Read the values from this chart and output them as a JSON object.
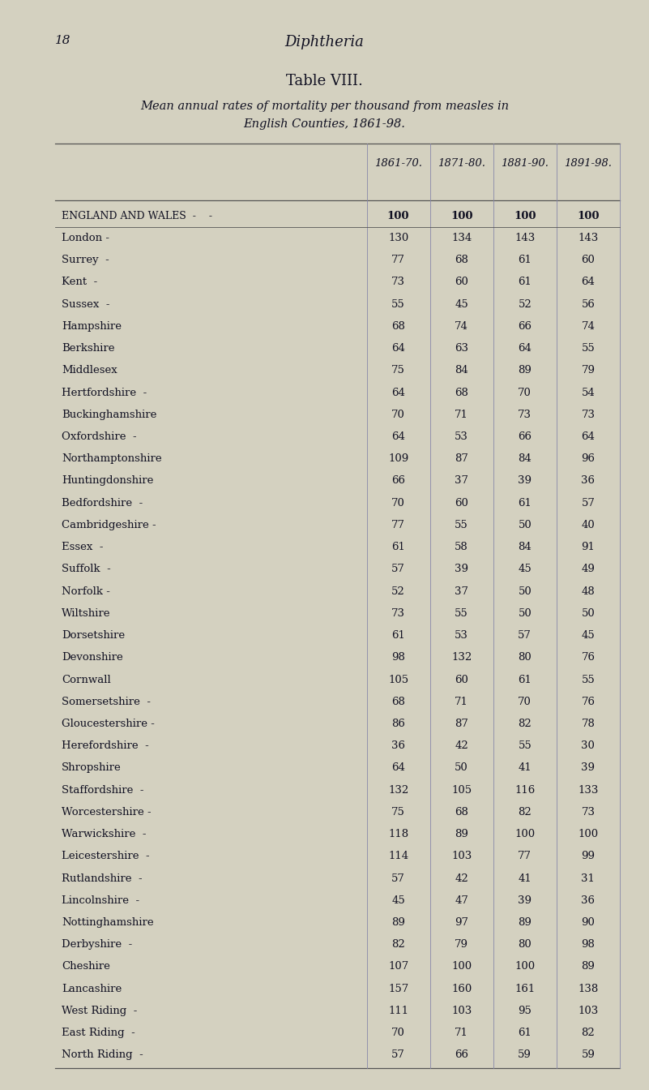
{
  "page_number": "18",
  "header_center": "Diphtheria",
  "table_title": "Table VIII.",
  "table_subtitle_line1": "Mean annual rates of mortality per thousand from measles in",
  "table_subtitle_line2": "English Counties, 1861-98.",
  "col_headers": [
    "1861-70.",
    "1871-80.",
    "1881-90.",
    "1891-98."
  ],
  "rows": [
    [
      "England and Wales  -",
      "100",
      "100",
      "100",
      "100"
    ],
    [
      "London -",
      "130",
      "134",
      "143",
      "143"
    ],
    [
      "Surrey  -",
      "77",
      "68",
      "61",
      "60"
    ],
    [
      "Kent  -",
      "73",
      "60",
      "61",
      "64"
    ],
    [
      "Sussex  -",
      "55",
      "45",
      "52",
      "56"
    ],
    [
      "Hampshire",
      "68",
      "74",
      "66",
      "74"
    ],
    [
      "Berkshire",
      "64",
      "63",
      "64",
      "55"
    ],
    [
      "Middlesex",
      "75",
      "84",
      "89",
      "79"
    ],
    [
      "Hertfordshire  -",
      "64",
      "68",
      "70",
      "54"
    ],
    [
      "Buckinghamshire",
      "70",
      "71",
      "73",
      "73"
    ],
    [
      "Oxfordshire  -",
      "64",
      "53",
      "66",
      "64"
    ],
    [
      "Northamptonshire",
      "109",
      "87",
      "84",
      "96"
    ],
    [
      "Huntingdonshire",
      "66",
      "37",
      "39",
      "36"
    ],
    [
      "Bedfordshire  -",
      "70",
      "60",
      "61",
      "57"
    ],
    [
      "Cambridgeshire -",
      "77",
      "55",
      "50",
      "40"
    ],
    [
      "Essex  -",
      "61",
      "58",
      "84",
      "91"
    ],
    [
      "Suffolk  -",
      "57",
      "39",
      "45",
      "49"
    ],
    [
      "Norfolk -",
      "52",
      "37",
      "50",
      "48"
    ],
    [
      "Wiltshire",
      "73",
      "55",
      "50",
      "50"
    ],
    [
      "Dorsetshire",
      "61",
      "53",
      "57",
      "45"
    ],
    [
      "Devonshire",
      "98",
      "132",
      "80",
      "76"
    ],
    [
      "Cornwall",
      "105",
      "60",
      "61",
      "55"
    ],
    [
      "Somersetshire  -",
      "68",
      "71",
      "70",
      "76"
    ],
    [
      "Gloucestershire -",
      "86",
      "87",
      "82",
      "78"
    ],
    [
      "Herefordshire  -",
      "36",
      "42",
      "55",
      "30"
    ],
    [
      "Shropshire",
      "64",
      "50",
      "41",
      "39"
    ],
    [
      "Staffordshire  -",
      "132",
      "105",
      "116",
      "133"
    ],
    [
      "Worcestershire -",
      "75",
      "68",
      "82",
      "73"
    ],
    [
      "Warwickshire  -",
      "118",
      "89",
      "100",
      "100"
    ],
    [
      "Leicestershire  -",
      "114",
      "103",
      "77",
      "99"
    ],
    [
      "Rutlandshire  -",
      "57",
      "42",
      "41",
      "31"
    ],
    [
      "Lincolnshire  -",
      "45",
      "47",
      "39",
      "36"
    ],
    [
      "Nottinghamshire",
      "89",
      "97",
      "89",
      "90"
    ],
    [
      "Derbyshire  -",
      "82",
      "79",
      "80",
      "98"
    ],
    [
      "Cheshire",
      "107",
      "100",
      "100",
      "89"
    ],
    [
      "Lancashire",
      "157",
      "160",
      "161",
      "138"
    ],
    [
      "West Riding  -",
      "111",
      "103",
      "95",
      "103"
    ],
    [
      "East Riding  -",
      "70",
      "71",
      "61",
      "82"
    ],
    [
      "North Riding  -",
      "57",
      "66",
      "59",
      "59"
    ]
  ],
  "bg_color": "#d4d1c0",
  "text_color": "#111122",
  "table_line_color": "#555555",
  "col_line_color": "#8888aa"
}
